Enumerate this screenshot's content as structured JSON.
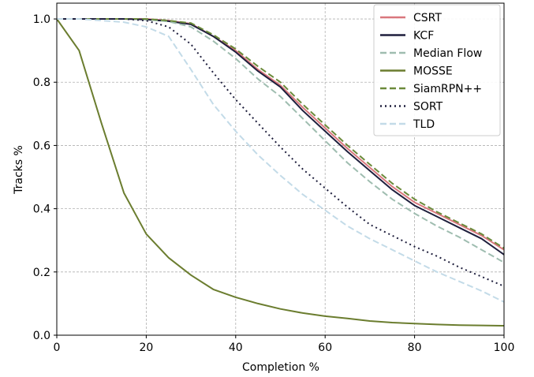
{
  "chart_data": {
    "type": "line",
    "title": "",
    "xlabel": "Completion %",
    "ylabel": "Tracks %",
    "xlim": [
      0,
      100
    ],
    "ylim": [
      0.0,
      1.05
    ],
    "xticks": [
      0,
      20,
      40,
      60,
      80,
      100
    ],
    "yticks": [
      0.0,
      0.2,
      0.4,
      0.6,
      0.8,
      1.0
    ],
    "xtick_labels": [
      "0",
      "20",
      "40",
      "60",
      "80",
      "100"
    ],
    "ytick_labels": [
      "0.0",
      "0.2",
      "0.4",
      "0.6",
      "0.8",
      "1.0"
    ],
    "grid": true,
    "legend_position": "top-right",
    "x": [
      0,
      5,
      10,
      15,
      20,
      25,
      30,
      35,
      40,
      45,
      50,
      55,
      60,
      65,
      70,
      75,
      80,
      85,
      90,
      95,
      100
    ],
    "series": [
      {
        "name": "CSRT",
        "color": "#d9777d",
        "dash": "solid",
        "values": [
          1.0,
          1.0,
          1.0,
          1.0,
          1.0,
          0.995,
          0.985,
          0.945,
          0.9,
          0.84,
          0.79,
          0.72,
          0.655,
          0.59,
          0.53,
          0.47,
          0.42,
          0.385,
          0.35,
          0.315,
          0.27
        ]
      },
      {
        "name": "KCF",
        "color": "#1f1f3d",
        "dash": "solid",
        "values": [
          1.0,
          1.0,
          1.0,
          1.0,
          0.998,
          0.993,
          0.983,
          0.945,
          0.895,
          0.835,
          0.785,
          0.71,
          0.645,
          0.58,
          0.52,
          0.46,
          0.41,
          0.375,
          0.34,
          0.305,
          0.255
        ]
      },
      {
        "name": "Median Flow",
        "color": "#9fbdb0",
        "dash": "dashed",
        "values": [
          1.0,
          1.0,
          1.0,
          1.0,
          0.998,
          0.992,
          0.975,
          0.93,
          0.875,
          0.81,
          0.755,
          0.685,
          0.615,
          0.545,
          0.485,
          0.43,
          0.385,
          0.345,
          0.31,
          0.27,
          0.23
        ]
      },
      {
        "name": "MOSSE",
        "color": "#6b7d2f",
        "dash": "solid",
        "values": [
          1.0,
          0.9,
          0.67,
          0.45,
          0.32,
          0.245,
          0.19,
          0.145,
          0.12,
          0.1,
          0.083,
          0.07,
          0.06,
          0.053,
          0.045,
          0.04,
          0.037,
          0.034,
          0.032,
          0.031,
          0.03
        ]
      },
      {
        "name": "SiamRPN++",
        "color": "#6b8a3a",
        "dash": "dashed",
        "values": [
          1.0,
          1.0,
          1.0,
          1.0,
          1.0,
          0.995,
          0.987,
          0.95,
          0.905,
          0.85,
          0.8,
          0.73,
          0.665,
          0.6,
          0.54,
          0.48,
          0.43,
          0.39,
          0.355,
          0.32,
          0.275
        ]
      },
      {
        "name": "SORT",
        "color": "#1f1f3d",
        "dash": "dotted",
        "values": [
          1.0,
          1.0,
          1.0,
          1.0,
          0.995,
          0.975,
          0.92,
          0.83,
          0.745,
          0.67,
          0.595,
          0.525,
          0.465,
          0.405,
          0.35,
          0.315,
          0.28,
          0.25,
          0.215,
          0.185,
          0.155
        ]
      },
      {
        "name": "TLD",
        "color": "#c3dbe8",
        "dash": "dashed",
        "values": [
          1.0,
          1.0,
          0.995,
          0.99,
          0.975,
          0.945,
          0.84,
          0.73,
          0.645,
          0.57,
          0.505,
          0.445,
          0.395,
          0.345,
          0.305,
          0.27,
          0.235,
          0.2,
          0.17,
          0.14,
          0.105
        ]
      }
    ]
  }
}
